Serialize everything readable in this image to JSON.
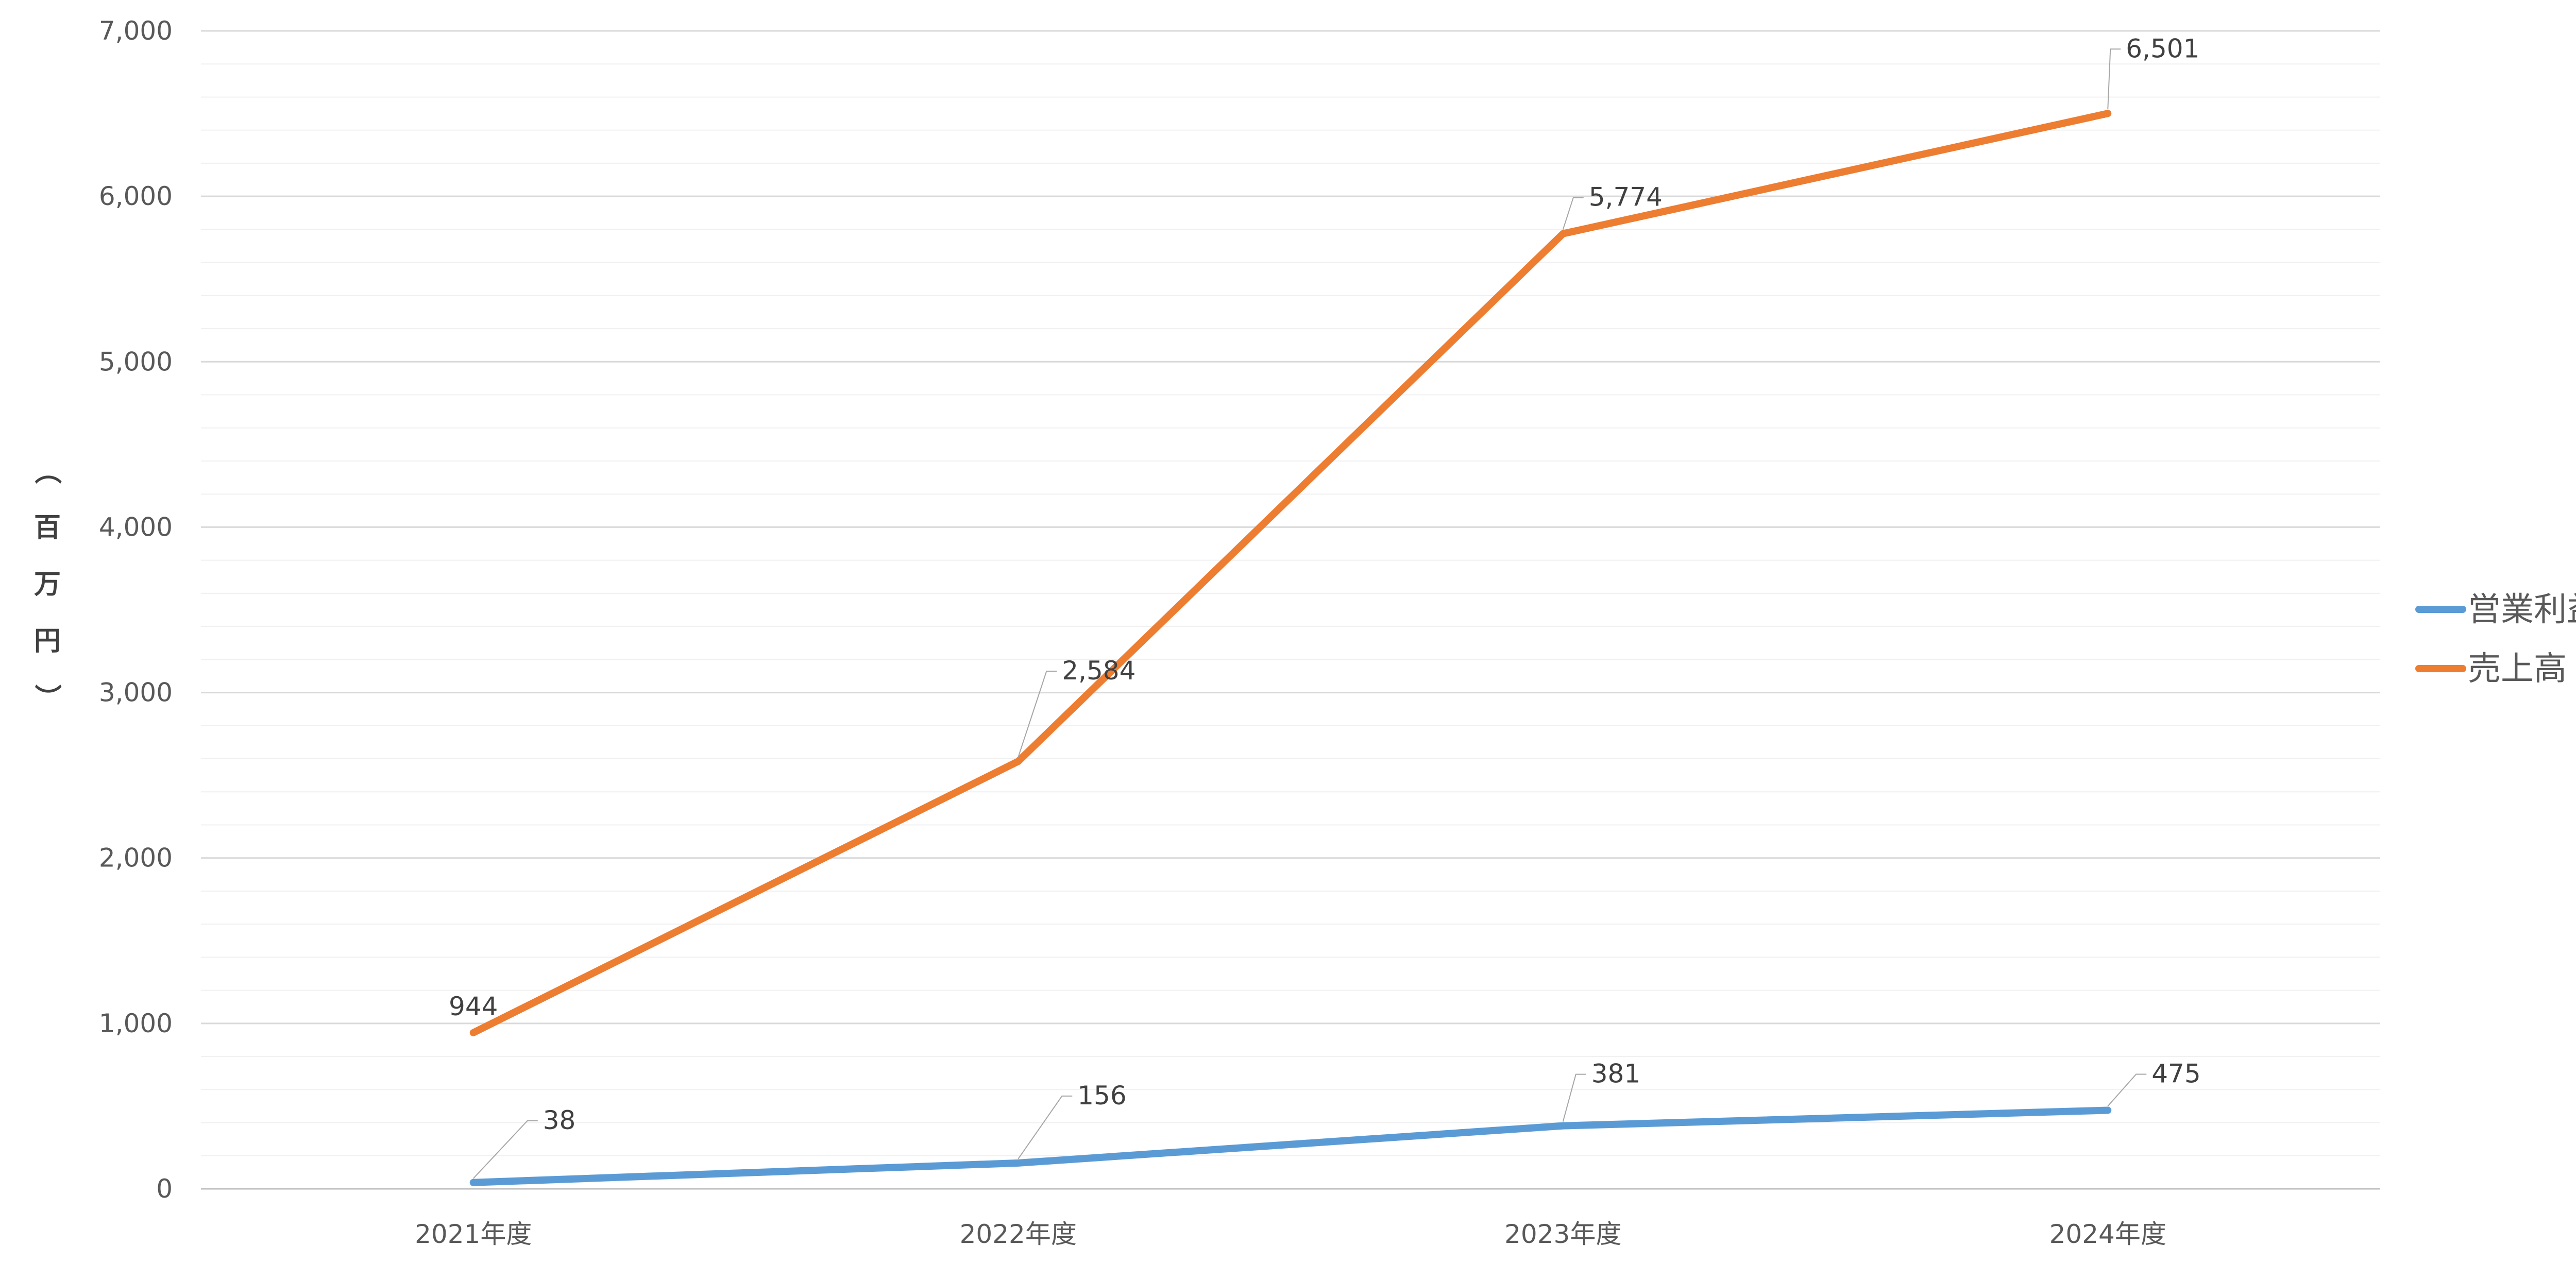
{
  "chart_data": {
    "type": "line",
    "categories": [
      "2021年度",
      "2022年度",
      "2023年度",
      "2024年度"
    ],
    "series": [
      {
        "name": "営業利益",
        "values": [
          38,
          156,
          381,
          475
        ],
        "color": "#5B9BD5"
      },
      {
        "name": "売上高",
        "values": [
          944,
          2584,
          5774,
          6501
        ],
        "color": "#ED7D31"
      }
    ],
    "ylabel": "（百万円）",
    "ylim": [
      0,
      7000
    ],
    "ytick_step": 1000,
    "yticks": [
      "0",
      "1,000",
      "2,000",
      "3,000",
      "4,000",
      "5,000",
      "6,000",
      "7,000"
    ],
    "data_labels": {
      "営業利益": [
        "38",
        "156",
        "381",
        "475"
      ],
      "売上高": [
        "944",
        "2,584",
        "5,774",
        "6,501"
      ]
    },
    "grid": true,
    "minor_grid": true,
    "legend": "right"
  }
}
